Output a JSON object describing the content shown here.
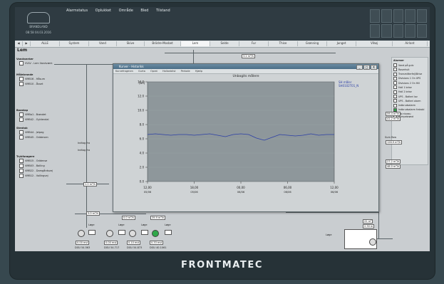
{
  "app": {
    "logo_top": "BRANDLAND",
    "datetime": "08:58  04.03.2016",
    "brand": "FRONTMATEC"
  },
  "menu": [
    "Alarmstatus",
    "Oplukket",
    "Område",
    "Bled",
    "Tilstand"
  ],
  "nav": {
    "tabs": [
      "ALLE",
      "System",
      "Vand",
      "Skive",
      "Brödre-Mosbet",
      "Lem",
      "Selde",
      "Fur",
      "Thise",
      "Grønning",
      "Junget",
      "Vihøj",
      "Airlant"
    ],
    "selected": "Lem"
  },
  "page": {
    "title": "Lem"
  },
  "left": {
    "vandvaerker": {
      "head": "Vandværker",
      "items": [
        "VVLV - Lem Vandværk"
      ]
    },
    "maalebrande": {
      "head": "Målebrande",
      "items": [
        "VMB16 - Håsum",
        "VMB10 - Åsset"
      ]
    },
    "boosttap": {
      "head": "Boostap",
      "items": [
        "VMBa1 - Brøndet",
        "VMB42 - Gyldendal"
      ]
    },
    "stentab": {
      "head": "Stentab",
      "items": [
        "VMB44 - Jelpeg",
        "VMB45 - Oddersen"
      ]
    },
    "trykforoeger": {
      "head": "Trykforøgere",
      "items": [
        "VMB15 - Oddense",
        "VMB03 - Balling",
        "VMB22 - Damgårdsvej",
        "VMB12 - Vollingvej"
      ]
    }
  },
  "alarms": {
    "head": "Alarmer",
    "items": [
      "Vand på gulv",
      "Roserhuit",
      "Transmitterfejl/Brise",
      "Divisions 1 On UPS",
      "Divisions 2 On Hill",
      "Hall 1 brise",
      "Hall 2 brise",
      "UPS - Batteri lav",
      "UPS - Batteri alarm",
      "Indbrudsalarm",
      "Indbrudsalarm frakobl",
      "Høj niveau pumpebrønd"
    ]
  },
  "values": {
    "top_flow": "3.2 m³/h",
    "left_flow": "1.2 m³/h",
    "r1": "59.4 m³/h",
    "r2": "41.2 m³/h",
    "r3": "126.9 m³/h",
    "r4": "27.2 m³/h",
    "r5": "48.0 m³/h",
    "pct1": "100 %",
    "pct2": "100 %",
    "pct3": "100 %",
    "pct4": "100 %",
    "bottom_flows": [
      "3.0 m³/h",
      "0.0 m³/h",
      "39.9 m³/h"
    ],
    "tank1": "22 m³",
    "tank2": "2.30 m",
    "pumps": [
      {
        "lbl": "Løge",
        "val": "0.00 mvl",
        "sub": "DGU 54.563"
      },
      {
        "lbl": "Løge",
        "val": "0.00 mvl",
        "sub": "DGU 54.717"
      },
      {
        "lbl": "Løge",
        "val": "0.10 mvl",
        "sub": "DGU 54.873"
      },
      {
        "lbl": "Løge",
        "val": "0.33 mvl",
        "sub": "DGU 40.1061"
      }
    ],
    "tank_label": "Løge",
    "note1": "Indtag fra",
    "note2": "Indtag fra",
    "side_note": "Sum flow"
  },
  "window": {
    "title": "Kurver - Historikk",
    "menu": [
      "Kurvefragmen",
      "Gurta",
      "Oprat",
      "Hallonbilst",
      "Periode",
      "Hjælp"
    ],
    "close": "X",
    "maximize": "□",
    "minimize": "_"
  },
  "chart_data": {
    "type": "line",
    "title": "Unbogits målere",
    "ylabel_unit": "[bh]",
    "legend": [
      "SH måler",
      "SH0102T01_N"
    ],
    "y_ticks": [
      "14.0",
      "12.0",
      "10.0",
      "8.0",
      "6.0",
      "4.0",
      "2.0",
      "0.0"
    ],
    "x_ticks": [
      {
        "t": "12,00",
        "d": "05/06"
      },
      {
        "t": "18,00",
        "d": "05/06"
      },
      {
        "t": "00,00",
        "d": "06/06"
      },
      {
        "t": "06,00",
        "d": "06/06"
      },
      {
        "t": "12,00",
        "d": "06/06"
      }
    ],
    "ylim": [
      0,
      14
    ],
    "xlim": [
      0,
      24
    ],
    "series": [
      {
        "name": "SH måler",
        "color": "#2c3fa6",
        "x": [
          0,
          1,
          2,
          3,
          4,
          5,
          6,
          7,
          8,
          9,
          10,
          11,
          12,
          13,
          14,
          15,
          16,
          17,
          18,
          19,
          20,
          21,
          22,
          23,
          24
        ],
        "y": [
          6.6,
          6.7,
          6.6,
          6.5,
          6.6,
          6.6,
          6.5,
          6.6,
          6.7,
          6.5,
          6.3,
          6.6,
          6.7,
          6.6,
          6.1,
          5.8,
          6.2,
          6.6,
          6.5,
          6.4,
          6.5,
          6.7,
          6.5,
          6.6,
          6.6
        ]
      }
    ]
  }
}
